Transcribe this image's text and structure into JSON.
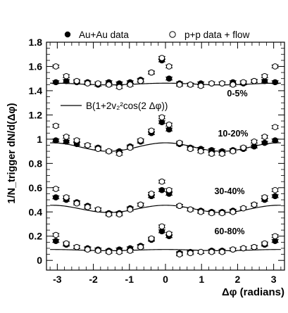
{
  "chart_data": {
    "type": "scatter",
    "xlabel": "Δφ (radians)",
    "ylabel": "1/N_trigger dN/d(Δφ)",
    "xlim": [
      -3.3,
      3.3
    ],
    "ylim": [
      -0.08,
      1.8
    ],
    "x_ticks": [
      -3,
      -2,
      -1,
      0,
      1,
      2,
      3
    ],
    "y_ticks": [
      0,
      0.2,
      0.4,
      0.6,
      0.8,
      1,
      1.2,
      1.4,
      1.6,
      1.8
    ],
    "x_tick_labels": [
      "-3",
      "-2",
      "-1",
      "0",
      "1",
      "2",
      "3"
    ],
    "y_tick_labels": [
      "0",
      "0.2",
      "0.4",
      "0.6",
      "0.8",
      "1",
      "1.2",
      "1.4",
      "1.6",
      "1.8"
    ],
    "grid": false,
    "legend_placement": "top",
    "legend": {
      "series_filled": "Au+Au data",
      "series_open": "p+p data + flow",
      "curve": "B(1+2v₂²cos(2 Δφ))"
    },
    "band_labels": [
      "0-5%",
      "10-20%",
      "30-40%",
      "60-80%"
    ],
    "x": [
      -3.04,
      -2.75,
      -2.46,
      -2.16,
      -1.87,
      -1.57,
      -1.28,
      -0.98,
      -0.69,
      -0.39,
      -0.1,
      0.1,
      0.39,
      0.69,
      0.98,
      1.28,
      1.57,
      1.87,
      2.16,
      2.46,
      2.75,
      3.04
    ],
    "series": [
      {
        "name": "Au+Au data",
        "band": "0-5%",
        "marker": "filled",
        "values": [
          1.47,
          1.48,
          1.47,
          1.47,
          1.45,
          1.47,
          1.46,
          1.47,
          1.49,
          1.55,
          1.65,
          1.5,
          1.46,
          1.45,
          1.46,
          1.46,
          1.46,
          1.47,
          1.46,
          1.48,
          1.48,
          1.47
        ]
      },
      {
        "name": "p+p data + flow",
        "band": "0-5%",
        "marker": "open",
        "values": [
          1.6,
          1.52,
          1.48,
          1.46,
          1.46,
          1.45,
          1.43,
          1.45,
          1.48,
          1.55,
          1.67,
          1.6,
          1.45,
          1.45,
          1.44,
          1.46,
          1.46,
          1.45,
          1.47,
          1.48,
          1.52,
          1.6
        ]
      },
      {
        "name": "Au+Au data",
        "band": "10-20%",
        "marker": "filled",
        "values": [
          0.99,
          0.98,
          0.96,
          0.95,
          0.93,
          0.9,
          0.9,
          0.94,
          0.98,
          1.05,
          1.14,
          1.08,
          0.96,
          0.93,
          0.92,
          0.91,
          0.9,
          0.91,
          0.92,
          0.94,
          0.97,
          0.99
        ]
      },
      {
        "name": "p+p data + flow",
        "band": "10-20%",
        "marker": "open",
        "values": [
          1.11,
          1.02,
          0.99,
          0.95,
          0.92,
          0.9,
          0.88,
          0.93,
          0.99,
          1.07,
          1.18,
          1.12,
          0.97,
          0.92,
          0.9,
          0.88,
          0.88,
          0.9,
          0.93,
          0.98,
          1.02,
          1.1
        ]
      },
      {
        "name": "Au+Au data",
        "band": "30-40%",
        "marker": "filled",
        "values": [
          0.52,
          0.5,
          0.48,
          0.45,
          0.42,
          0.39,
          0.39,
          0.43,
          0.46,
          0.53,
          0.58,
          0.55,
          0.45,
          0.42,
          0.41,
          0.4,
          0.4,
          0.41,
          0.43,
          0.46,
          0.5,
          0.53
        ]
      },
      {
        "name": "p+p data + flow",
        "band": "30-40%",
        "marker": "open",
        "values": [
          0.59,
          0.52,
          0.47,
          0.44,
          0.42,
          0.38,
          0.38,
          0.42,
          0.46,
          0.55,
          0.65,
          0.58,
          0.45,
          0.42,
          0.4,
          0.39,
          0.39,
          0.4,
          0.43,
          0.46,
          0.52,
          0.58
        ]
      },
      {
        "name": "Au+Au data",
        "band": "60-80%",
        "marker": "filled",
        "values": [
          0.16,
          0.13,
          0.11,
          0.1,
          0.09,
          0.08,
          0.09,
          0.1,
          0.12,
          0.17,
          0.24,
          0.2,
          0.06,
          0.07,
          0.07,
          0.08,
          0.08,
          0.09,
          0.1,
          0.11,
          0.13,
          0.16
        ]
      },
      {
        "name": "p+p data + flow",
        "band": "60-80%",
        "marker": "open",
        "values": [
          0.21,
          0.14,
          0.11,
          0.09,
          0.08,
          0.07,
          0.07,
          0.08,
          0.11,
          0.18,
          0.28,
          0.22,
          0.05,
          0.06,
          0.07,
          0.07,
          0.07,
          0.09,
          0.1,
          0.11,
          0.14,
          0.2
        ]
      }
    ],
    "fit_curves": [
      {
        "band": "0-5%",
        "B": 1.455,
        "a": 0.007
      },
      {
        "band": "10-20%",
        "B": 0.935,
        "a": 0.035
      },
      {
        "band": "30-40%",
        "B": 0.425,
        "a": 0.03
      },
      {
        "band": "60-80%",
        "B": 0.085,
        "a": 0.005
      }
    ],
    "error_bar": 0.012
  }
}
